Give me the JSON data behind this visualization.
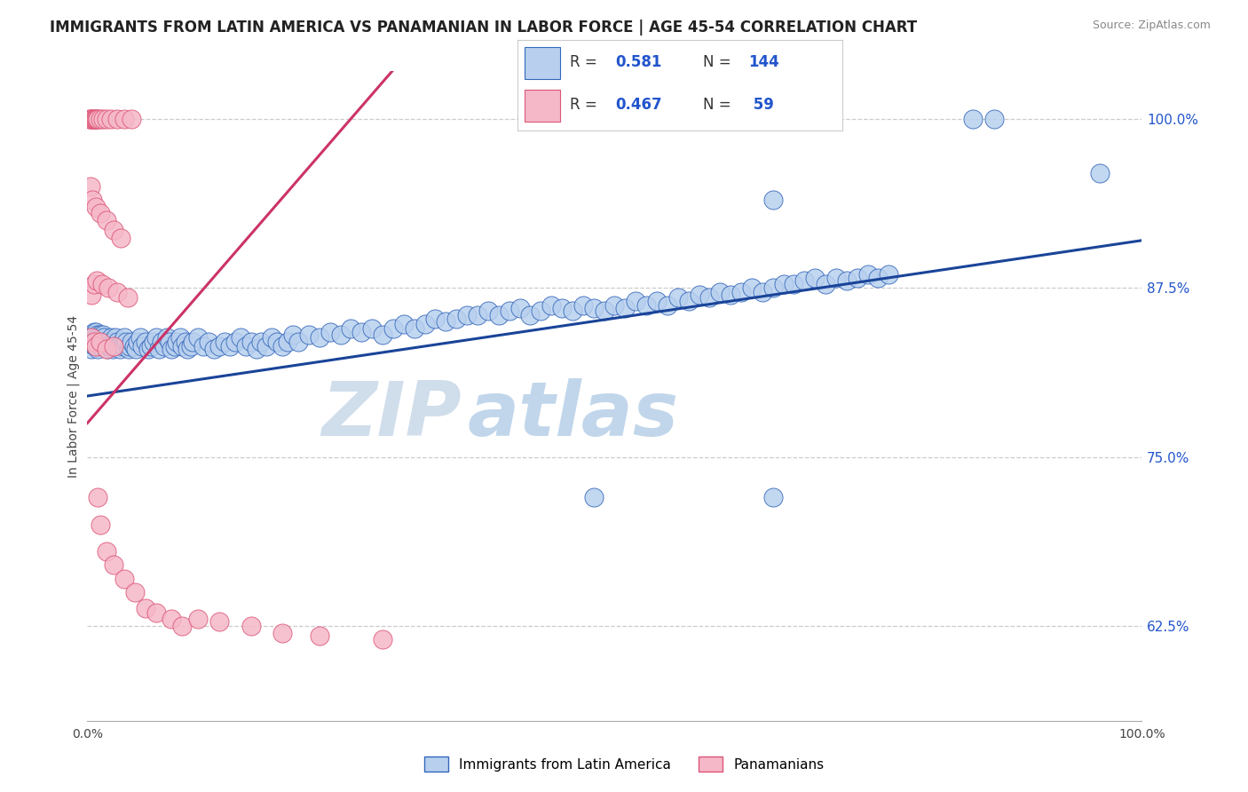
{
  "title": "IMMIGRANTS FROM LATIN AMERICA VS PANAMANIAN IN LABOR FORCE | AGE 45-54 CORRELATION CHART",
  "source": "Source: ZipAtlas.com",
  "ylabel": "In Labor Force | Age 45-54",
  "xlim": [
    0.0,
    1.0
  ],
  "ylim": [
    0.555,
    1.035
  ],
  "ytick_vals": [
    0.625,
    0.75,
    0.875,
    1.0
  ],
  "ytick_labels": [
    "62.5%",
    "75.0%",
    "87.5%",
    "100.0%"
  ],
  "xtick_vals": [
    0.0,
    0.2,
    0.4,
    0.6,
    0.8,
    1.0
  ],
  "xtick_labels": [
    "0.0%",
    "",
    "",
    "",
    "",
    "100.0%"
  ],
  "legend_blue_label": "Immigrants from Latin America",
  "legend_pink_label": "Panamanians",
  "blue_face": "#b8d0ee",
  "blue_edge": "#3366bb",
  "blue_line": "#1a4499",
  "pink_face": "#f5b8c8",
  "pink_edge": "#dd5577",
  "pink_line": "#cc3366",
  "watermark": "ZIPatlas",
  "watermark_color": "#ddeeff",
  "title_fontsize": 12,
  "source_fontsize": 9,
  "tick_fontsize": 10,
  "ylabel_fontsize": 10
}
